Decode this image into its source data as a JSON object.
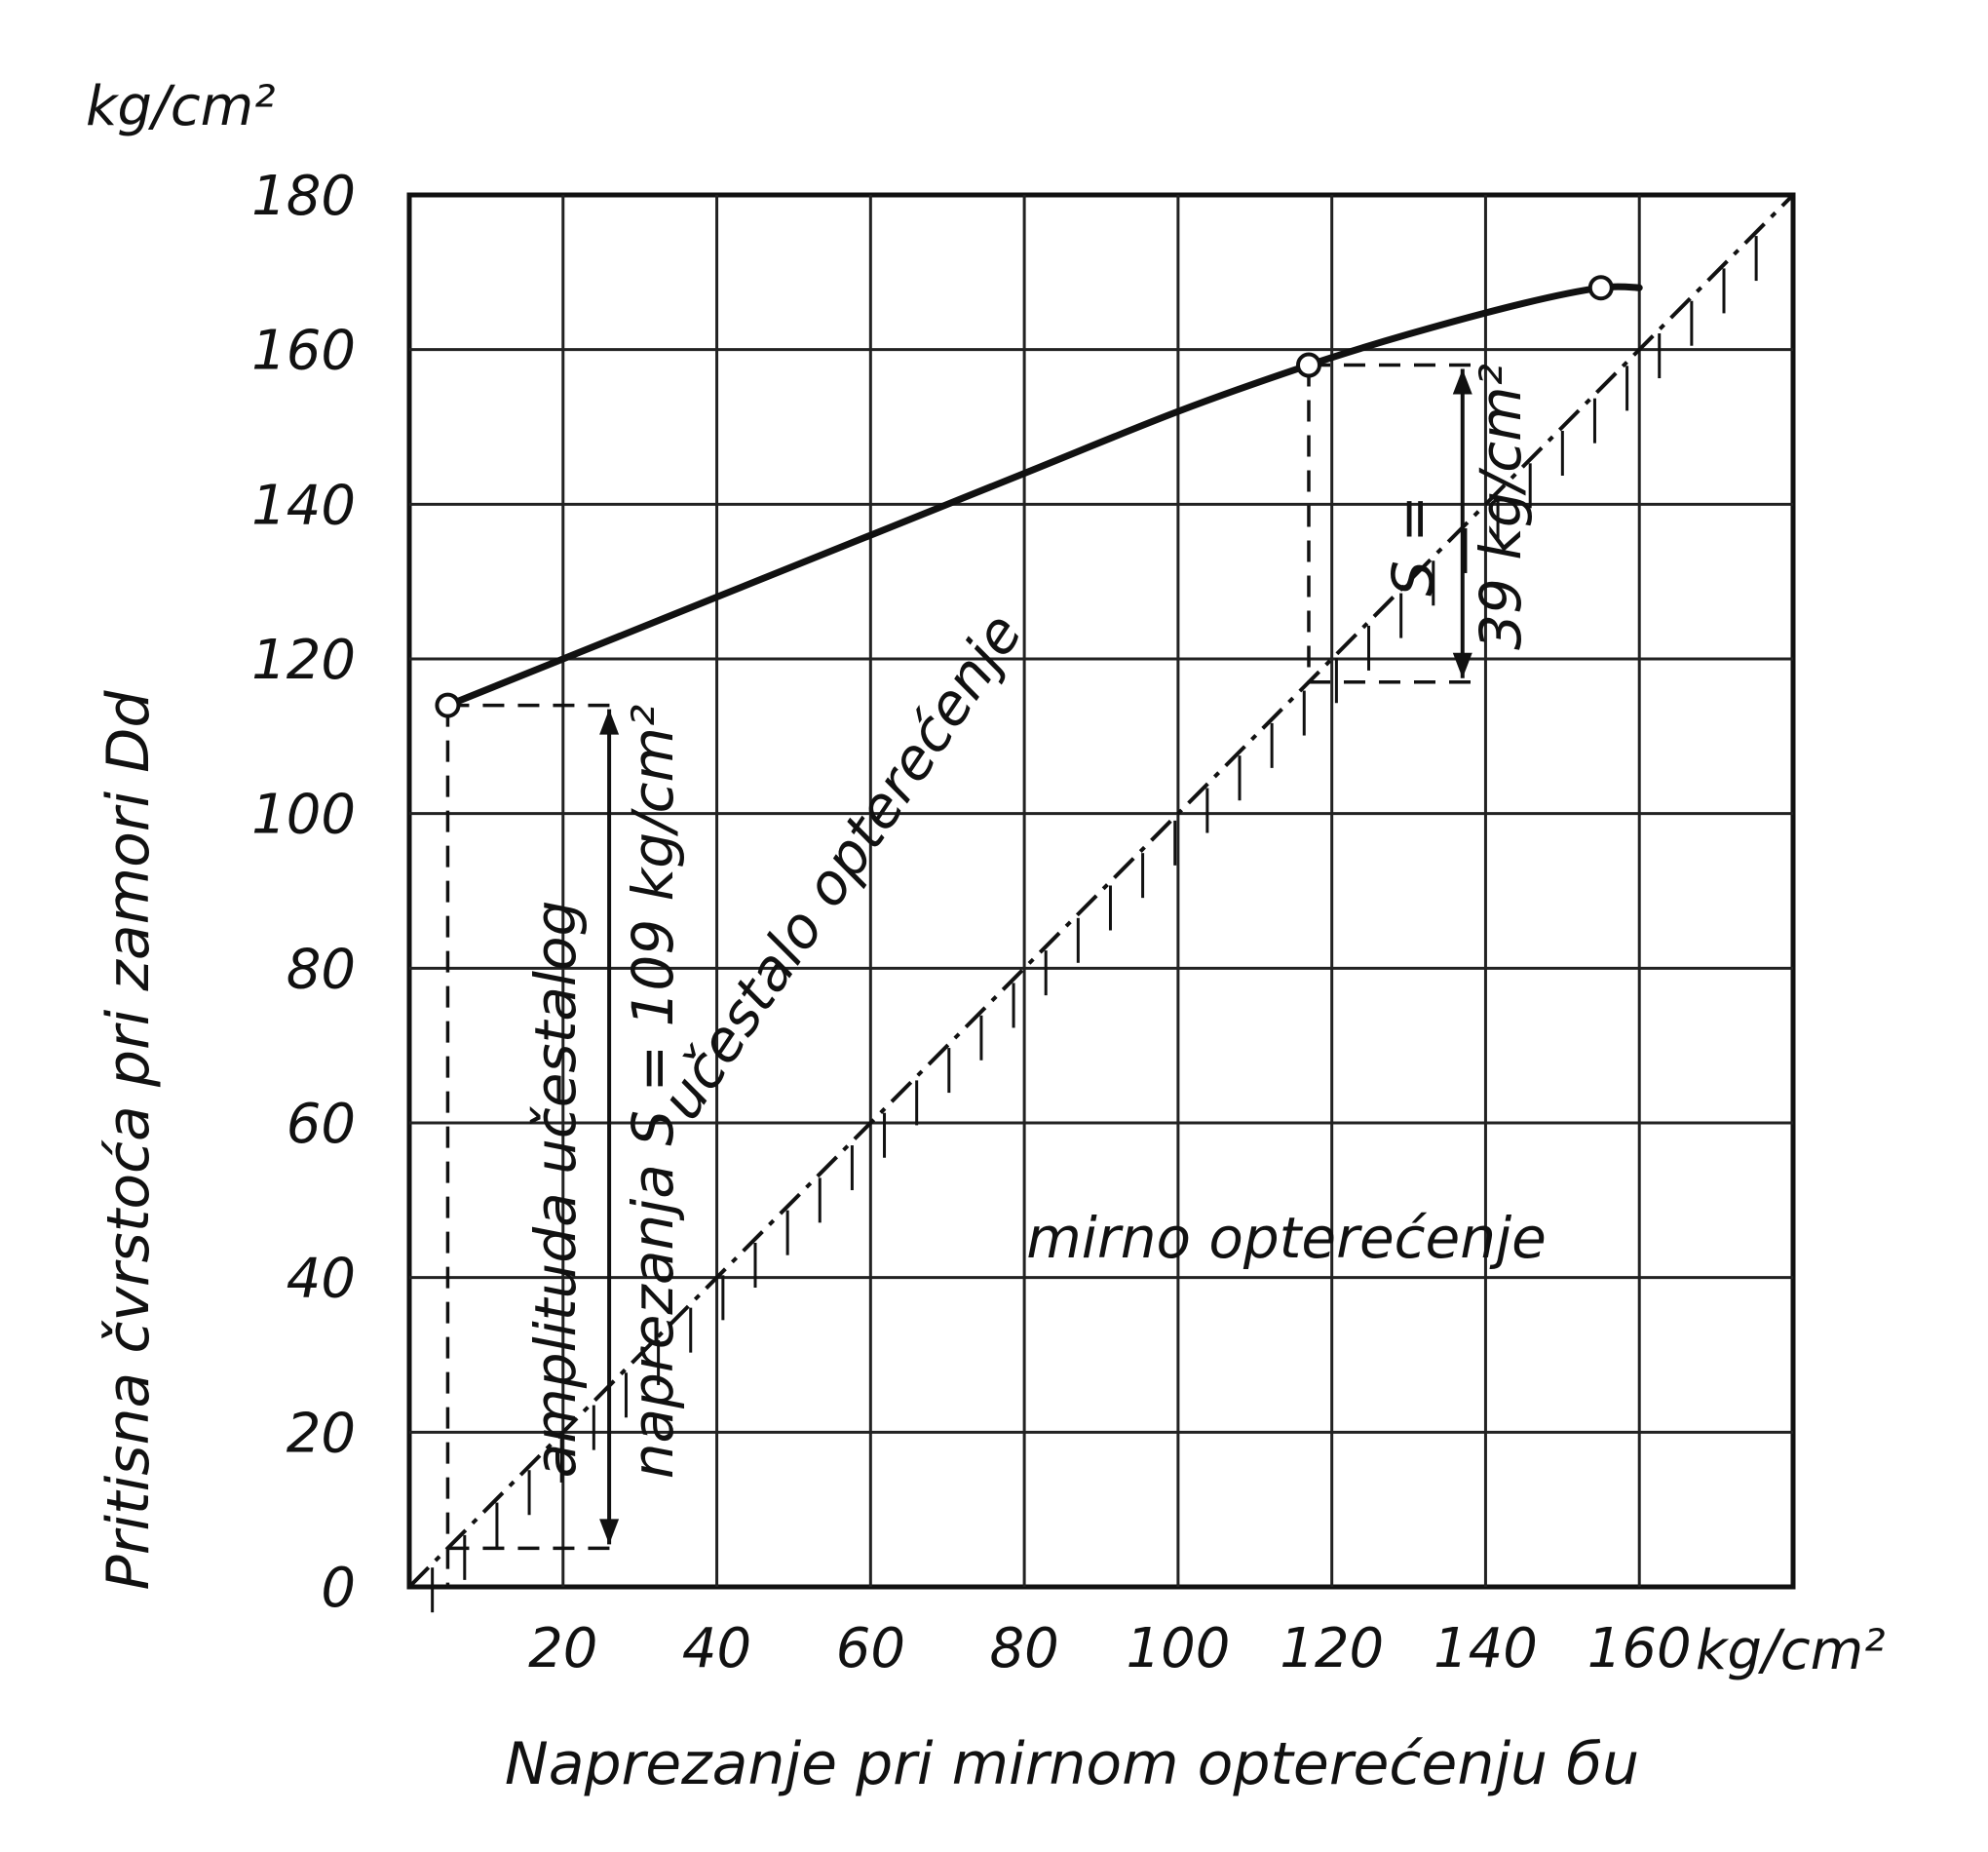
{
  "chart_data": {
    "type": "line",
    "ylabel": "Pritisna čvrstoća pri zamori  Dd",
    "ylabel_unit": "kg/cm²",
    "xlabel": "Naprezanje pri mirnom opterećenju бu",
    "xlabel_unit": "kg/cm²",
    "xlim": [
      0,
      180
    ],
    "ylim": [
      0,
      180
    ],
    "x_ticks": [
      20,
      40,
      60,
      80,
      100,
      120,
      140,
      160
    ],
    "y_ticks": [
      0,
      20,
      40,
      60,
      80,
      100,
      120,
      140,
      160,
      180
    ],
    "grid": true,
    "series": [
      {
        "style": "solid-curve",
        "x": [
          5,
          20,
          40,
          60,
          80,
          100,
          117,
          130,
          145,
          155,
          160
        ],
        "y": [
          114,
          120,
          128,
          136,
          144,
          152,
          158,
          162,
          166,
          168,
          168
        ]
      },
      {
        "style": "hatched-diagonal",
        "x": [
          0,
          180
        ],
        "y": [
          0,
          180
        ]
      }
    ],
    "marked_points": [
      {
        "x": 5,
        "y": 114
      },
      {
        "x": 117,
        "y": 158
      },
      {
        "x": 155,
        "y": 168
      }
    ],
    "annotations": {
      "region_upper": "učestalo opterećenje",
      "region_lower": "mirno opterećenje",
      "amplitude_line1": "amplituda učestalog",
      "amplitude_line2": "naprezanja S = 109 kg/cm²",
      "s_small_line1": "S =",
      "s_small_line2": "39 kg/cm²"
    }
  }
}
